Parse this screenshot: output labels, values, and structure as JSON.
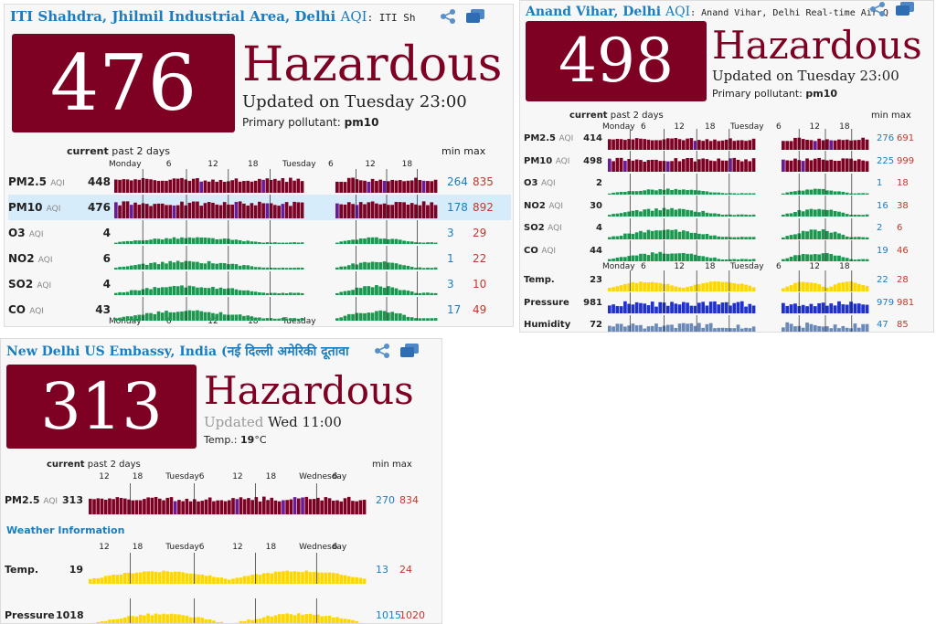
{
  "colors": {
    "hazardous": "#7e0023",
    "good": "#1a9850",
    "purple": "#6a1b9a",
    "temp": "#ffd700",
    "pressure": "#1f2fd0",
    "humidity": "#6a88b8",
    "link": "#1a7dc0",
    "max": "#c0392b"
  },
  "icons": {
    "share": "share-icon",
    "window": "window-icon"
  },
  "panel1": {
    "title": "ITI Shahdra, Jhilmil Industrial Area, Delhi",
    "aqi_link": "AQI",
    "subtitle": ": ITI Sh",
    "aqi": "476",
    "level": "Hazardous",
    "updated": "Updated on Tuesday 23:00",
    "pollutant_label": "Primary pollutant:",
    "pollutant": "pm10",
    "current_label": "current",
    "past_label": "past 2 days",
    "min_label": "min",
    "max_label": "max",
    "ticks_a": [
      "Monday",
      "6",
      "12",
      "18",
      "Tuesday"
    ],
    "ticks_b": [
      "6",
      "12",
      "18"
    ],
    "rows": [
      {
        "name": "PM2.5",
        "unit": "AQI",
        "value": "448",
        "min": "264",
        "max": "835",
        "kind": "haz",
        "level": 0.75
      },
      {
        "name": "PM10",
        "unit": "AQI",
        "value": "476",
        "min": "178",
        "max": "892",
        "kind": "haz",
        "level": 0.85,
        "highlight": true
      },
      {
        "name": "O3",
        "unit": "AQI",
        "value": "4",
        "min": "3",
        "max": "29",
        "kind": "good",
        "level": 0.35
      },
      {
        "name": "NO2",
        "unit": "AQI",
        "value": "6",
        "min": "1",
        "max": "22",
        "kind": "good",
        "level": 0.45
      },
      {
        "name": "SO2",
        "unit": "AQI",
        "value": "4",
        "min": "3",
        "max": "10",
        "kind": "good",
        "level": 0.5
      },
      {
        "name": "CO",
        "unit": "AQI",
        "value": "43",
        "min": "17",
        "max": "49",
        "kind": "good",
        "level": 0.55
      }
    ]
  },
  "panel2": {
    "title": "Anand Vihar, Delhi",
    "aqi_link": "AQI",
    "subtitle": ": Anand Vihar, Delhi Real-time Air Q",
    "aqi": "498",
    "level": "Hazardous",
    "updated": "Updated on Tuesday 23:00",
    "pollutant_label": "Primary pollutant:",
    "pollutant": "pm10",
    "current_label": "current",
    "past_label": "past 2 days",
    "min_label": "min",
    "max_label": "max",
    "ticks_a": [
      "Monday",
      "6",
      "12",
      "18",
      "Tuesday"
    ],
    "ticks_b": [
      "6",
      "12",
      "18"
    ],
    "rows": [
      {
        "name": "PM2.5",
        "unit": "AQI",
        "value": "414",
        "min": "276",
        "max": "691",
        "kind": "haz",
        "level": 0.7
      },
      {
        "name": "PM10",
        "unit": "AQI",
        "value": "498",
        "min": "225",
        "max": "999",
        "kind": "haz",
        "level": 0.8
      },
      {
        "name": "O3",
        "unit": "AQI",
        "value": "2",
        "min": "1",
        "max": "18",
        "kind": "good",
        "level": 0.35
      },
      {
        "name": "NO2",
        "unit": "AQI",
        "value": "30",
        "min": "16",
        "max": "38",
        "kind": "good",
        "level": 0.5
      },
      {
        "name": "SO2",
        "unit": "AQI",
        "value": "4",
        "min": "2",
        "max": "6",
        "kind": "good",
        "level": 0.6
      },
      {
        "name": "CO",
        "unit": "AQI",
        "value": "44",
        "min": "19",
        "max": "46",
        "kind": "good",
        "level": 0.55
      },
      {
        "name": "Temp.",
        "unit": "",
        "value": "23",
        "min": "22",
        "max": "28",
        "kind": "temp",
        "level": 0.6
      },
      {
        "name": "Pressure",
        "unit": "",
        "value": "981",
        "min": "979",
        "max": "981",
        "kind": "pressure",
        "level": 0.7
      },
      {
        "name": "Humidity",
        "unit": "",
        "value": "72",
        "min": "47",
        "max": "85",
        "kind": "humidity",
        "level": 0.8
      }
    ]
  },
  "panel3": {
    "title": "New Delhi US Embassy, India (नई दिल्ली अमेरिकी दूतावा",
    "aqi": "313",
    "level": "Hazardous",
    "updated_dim": "Updated",
    "updated": "Wed 11:00",
    "temp_label": "Temp.:",
    "temp_value": "19",
    "temp_unit": "°C",
    "current_label": "current",
    "past_label": "past 2 days",
    "min_label": "min",
    "max_label": "max",
    "ticks": [
      "12",
      "18",
      "Tuesday",
      "6",
      "12",
      "18",
      "Wednesday",
      "6"
    ],
    "weather_label": "Weather Information",
    "rows": [
      {
        "name": "PM2.5",
        "unit": "AQI",
        "value": "313",
        "min": "270",
        "max": "834",
        "kind": "haz",
        "level": 0.65
      },
      {
        "name": "Temp.",
        "unit": "",
        "value": "19",
        "min": "13",
        "max": "24",
        "kind": "temp",
        "level": 0.5
      },
      {
        "name": "Pressure",
        "unit": "",
        "value": "1018",
        "min": "1015",
        "max": "1020",
        "kind": "temp",
        "level": 0.6
      }
    ]
  }
}
